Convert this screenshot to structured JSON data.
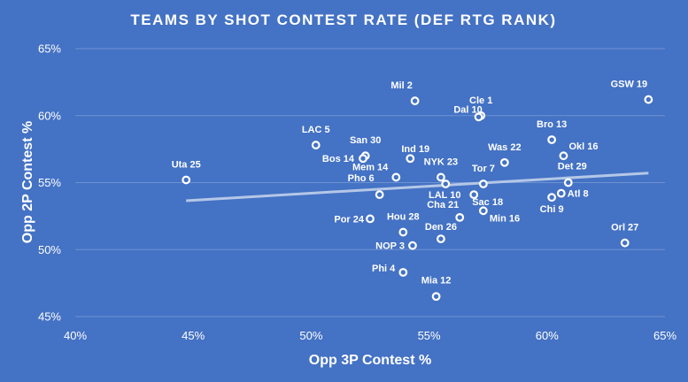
{
  "chart_data": {
    "type": "scatter",
    "title": "TEAMS BY SHOT CONTEST RATE (DEF RTG RANK)",
    "xlabel": "Opp 3P Contest %",
    "ylabel": "Opp 2P Contest %",
    "xlim": [
      0.4,
      0.65
    ],
    "ylim": [
      0.45,
      0.65
    ],
    "x_ticks": [
      0.4,
      0.45,
      0.5,
      0.55,
      0.6,
      0.65
    ],
    "y_ticks": [
      0.45,
      0.5,
      0.55,
      0.6,
      0.65
    ],
    "x_tick_labels": [
      "40%",
      "45%",
      "50%",
      "55%",
      "60%",
      "65%"
    ],
    "y_tick_labels": [
      "45%",
      "50%",
      "55%",
      "60%",
      "65%"
    ],
    "grid": "horizontal",
    "trendline": {
      "type": "linear",
      "x": [
        0.447,
        0.643
      ],
      "y": [
        0.5365,
        0.5571
      ]
    },
    "points": [
      {
        "label": "GSW 19",
        "x": 0.643,
        "y": 0.612
      },
      {
        "label": "Mil 2",
        "x": 0.544,
        "y": 0.611
      },
      {
        "label": "Cle 1",
        "x": 0.572,
        "y": 0.6
      },
      {
        "label": "Dal 10",
        "x": 0.571,
        "y": 0.599
      },
      {
        "label": "Bro 13",
        "x": 0.602,
        "y": 0.582
      },
      {
        "label": "LAC 5",
        "x": 0.502,
        "y": 0.578
      },
      {
        "label": "Okl 16",
        "x": 0.607,
        "y": 0.57
      },
      {
        "label": "San 30",
        "x": 0.523,
        "y": 0.57
      },
      {
        "label": "Ind 19",
        "x": 0.542,
        "y": 0.568
      },
      {
        "label": "Bos 14",
        "x": 0.522,
        "y": 0.568
      },
      {
        "label": "Was 22",
        "x": 0.582,
        "y": 0.565
      },
      {
        "label": "Uta 25",
        "x": 0.447,
        "y": 0.552
      },
      {
        "label": "NYK 23",
        "x": 0.555,
        "y": 0.554
      },
      {
        "label": "Mem 14",
        "x": 0.536,
        "y": 0.554
      },
      {
        "label": "Det 29",
        "x": 0.609,
        "y": 0.55
      },
      {
        "label": "Tor 7",
        "x": 0.573,
        "y": 0.549
      },
      {
        "label": "LAL 10",
        "x": 0.557,
        "y": 0.549
      },
      {
        "label": "Atl 8",
        "x": 0.606,
        "y": 0.542
      },
      {
        "label": "Sac 18",
        "x": 0.569,
        "y": 0.541
      },
      {
        "label": "Pho 6",
        "x": 0.529,
        "y": 0.541
      },
      {
        "label": "Chi 9",
        "x": 0.602,
        "y": 0.539
      },
      {
        "label": "Min 16",
        "x": 0.573,
        "y": 0.529
      },
      {
        "label": "Cha 21",
        "x": 0.563,
        "y": 0.524
      },
      {
        "label": "Por 24",
        "x": 0.525,
        "y": 0.523
      },
      {
        "label": "Hou 28",
        "x": 0.539,
        "y": 0.513
      },
      {
        "label": "Den 26",
        "x": 0.555,
        "y": 0.508
      },
      {
        "label": "Orl 27",
        "x": 0.633,
        "y": 0.505
      },
      {
        "label": "NOP 3",
        "x": 0.543,
        "y": 0.503
      },
      {
        "label": "Phi 4",
        "x": 0.539,
        "y": 0.483
      },
      {
        "label": "Mia 12",
        "x": 0.553,
        "y": 0.465
      }
    ]
  },
  "colors": {
    "background": "#4472c4",
    "text": "#ffffff",
    "grid": "#6f92d2",
    "trendline": "#b4c7e7"
  }
}
